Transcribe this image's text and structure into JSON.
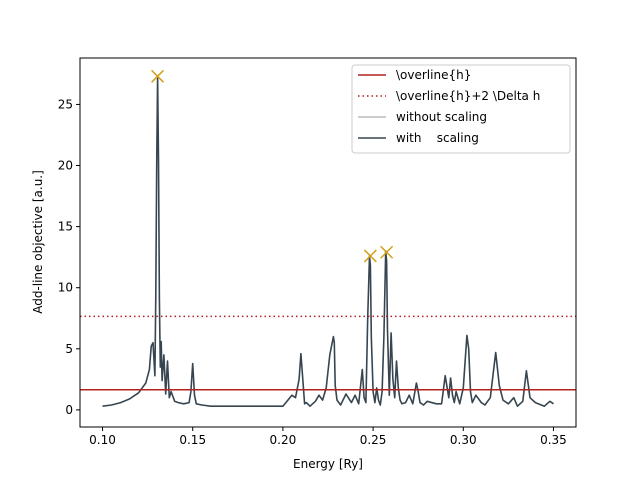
{
  "chart_data": {
    "type": "line",
    "title": "",
    "xlabel": "Energy [Ry]",
    "ylabel": "Add-line objective [a.u.]",
    "xlim": [
      0.0875,
      0.3625
    ],
    "ylim": [
      -1.4,
      28.8
    ],
    "xticks": [
      0.1,
      0.15,
      0.2,
      0.25,
      0.3,
      0.35
    ],
    "xtick_labels": [
      "0.10",
      "0.15",
      "0.20",
      "0.25",
      "0.30",
      "0.35"
    ],
    "yticks": [
      0,
      5,
      10,
      15,
      20,
      25
    ],
    "ytick_labels": [
      "0",
      "5",
      "10",
      "15",
      "20",
      "25"
    ],
    "grid": false,
    "legend_position": "top-right",
    "hlines": [
      {
        "name": "\\overline{h}",
        "y": 1.65,
        "color": "#b22222",
        "style": "solid"
      },
      {
        "name": "\\overline{h}+2 \\Delta h",
        "y": 7.65,
        "color": "#b22222",
        "style": "dotted"
      }
    ],
    "series": [
      {
        "name": "without scaling",
        "color": "#bbbbbb",
        "x": [],
        "values": []
      },
      {
        "name": "with    scaling",
        "color": "#36454f",
        "x": [
          0.1,
          0.105,
          0.11,
          0.115,
          0.12,
          0.124,
          0.126,
          0.127,
          0.128,
          0.129,
          0.1295,
          0.13,
          0.1305,
          0.131,
          0.1315,
          0.132,
          0.1325,
          0.133,
          0.134,
          0.135,
          0.136,
          0.137,
          0.138,
          0.14,
          0.142,
          0.145,
          0.148,
          0.149,
          0.15,
          0.151,
          0.152,
          0.155,
          0.16,
          0.17,
          0.18,
          0.19,
          0.2,
          0.205,
          0.207,
          0.209,
          0.21,
          0.211,
          0.212,
          0.213,
          0.215,
          0.218,
          0.22,
          0.222,
          0.224,
          0.226,
          0.228,
          0.2285,
          0.229,
          0.23,
          0.232,
          0.235,
          0.238,
          0.24,
          0.242,
          0.244,
          0.245,
          0.246,
          0.247,
          0.248,
          0.2485,
          0.249,
          0.25,
          0.251,
          0.252,
          0.253,
          0.254,
          0.255,
          0.256,
          0.257,
          0.2575,
          0.258,
          0.259,
          0.26,
          0.261,
          0.262,
          0.263,
          0.264,
          0.265,
          0.266,
          0.268,
          0.27,
          0.272,
          0.274,
          0.275,
          0.276,
          0.278,
          0.28,
          0.285,
          0.288,
          0.29,
          0.292,
          0.293,
          0.294,
          0.295,
          0.296,
          0.298,
          0.3,
          0.302,
          0.303,
          0.304,
          0.305,
          0.307,
          0.31,
          0.312,
          0.315,
          0.318,
          0.32,
          0.322,
          0.325,
          0.328,
          0.33,
          0.333,
          0.335,
          0.337,
          0.34,
          0.345,
          0.348,
          0.35
        ],
        "values": [
          0.3,
          0.4,
          0.6,
          0.9,
          1.4,
          2.2,
          3.3,
          5.2,
          5.5,
          2.8,
          9.5,
          20.0,
          27.3,
          20.5,
          9.0,
          3.5,
          5.6,
          2.4,
          4.5,
          1.3,
          4.0,
          1.0,
          1.5,
          0.7,
          0.6,
          0.5,
          0.6,
          1.5,
          3.8,
          1.2,
          0.5,
          0.4,
          0.3,
          0.3,
          0.3,
          0.3,
          0.3,
          1.2,
          1.0,
          2.5,
          4.6,
          2.6,
          0.5,
          0.6,
          0.3,
          0.7,
          1.2,
          0.8,
          1.8,
          4.5,
          6.0,
          5.5,
          2.0,
          0.8,
          0.4,
          1.3,
          0.6,
          1.2,
          0.5,
          3.3,
          1.0,
          0.6,
          7.5,
          12.6,
          11.8,
          6.0,
          1.5,
          0.6,
          1.8,
          0.8,
          0.4,
          1.5,
          6.0,
          13.0,
          12.2,
          6.5,
          1.2,
          6.3,
          2.5,
          1.0,
          4.0,
          1.8,
          0.8,
          0.5,
          0.6,
          1.2,
          0.5,
          2.2,
          1.5,
          0.6,
          0.4,
          0.7,
          0.5,
          0.5,
          2.8,
          1.0,
          2.6,
          1.2,
          0.6,
          1.5,
          0.5,
          1.8,
          6.1,
          5.0,
          1.5,
          0.6,
          1.2,
          0.6,
          0.4,
          1.0,
          4.7,
          2.0,
          0.8,
          0.5,
          1.0,
          0.3,
          0.7,
          3.2,
          1.0,
          0.6,
          0.3,
          0.7,
          0.5
        ]
      }
    ],
    "peak_markers": {
      "color": "#d4a017",
      "x": [
        0.1305,
        0.2485,
        0.2575
      ],
      "values": [
        27.3,
        12.6,
        12.9
      ]
    },
    "legend": {
      "items": [
        "\\overline{h}",
        "\\overline{h}+2 \\Delta h",
        "without scaling",
        "with    scaling"
      ]
    }
  }
}
